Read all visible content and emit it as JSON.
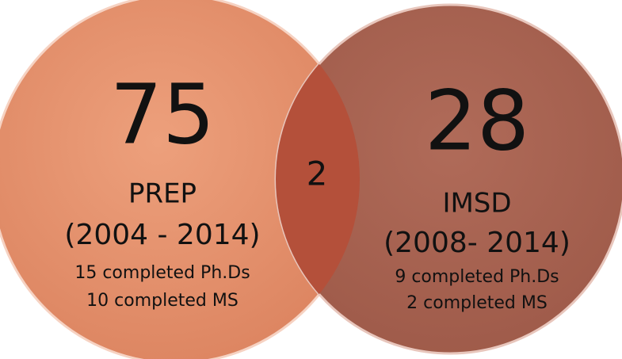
{
  "sets": [
    {
      "count": 75,
      "label": "PREP",
      "period": "(2004 - 2014)",
      "details": [
        "15 completed Ph.Ds",
        "10 completed MS"
      ]
    },
    {
      "count": 28,
      "label": "IMSD",
      "period": "(2008- 2014)",
      "details": [
        "9 completed Ph.Ds",
        "2 completed MS"
      ]
    }
  ],
  "intersection": {
    "count": 2
  }
}
